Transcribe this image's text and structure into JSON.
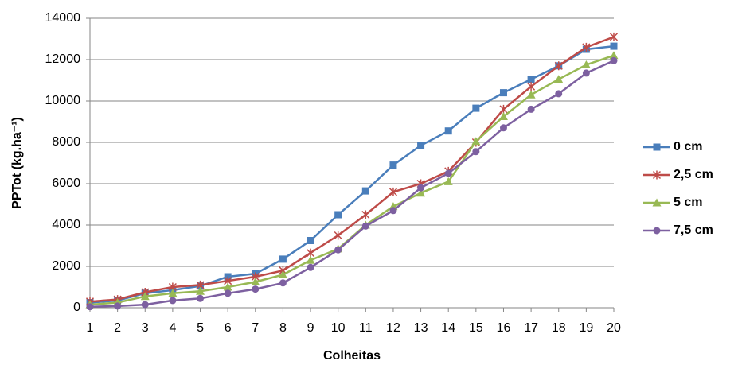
{
  "chart_data": {
    "type": "line",
    "x_label": "Colheitas",
    "y_label": "PPTot (kg.ha⁻¹)",
    "x": [
      1,
      2,
      3,
      4,
      5,
      6,
      7,
      8,
      9,
      10,
      11,
      12,
      13,
      14,
      15,
      16,
      17,
      18,
      19,
      20
    ],
    "xlim": [
      1,
      20
    ],
    "xticks": [
      1,
      2,
      3,
      4,
      5,
      6,
      7,
      8,
      9,
      10,
      11,
      12,
      13,
      14,
      15,
      16,
      17,
      18,
      19,
      20
    ],
    "ylim": [
      0,
      14000
    ],
    "yticks": [
      0,
      2000,
      4000,
      6000,
      8000,
      10000,
      12000,
      14000
    ],
    "grid": true,
    "legend": "right",
    "series": [
      {
        "name": "0 cm",
        "color": "#4a7ebb",
        "marker": "square",
        "values": [
          250,
          350,
          700,
          850,
          1050,
          1500,
          1650,
          2350,
          3250,
          4500,
          5650,
          6900,
          7850,
          8550,
          9650,
          10400,
          11050,
          11700,
          12500,
          12650
        ]
      },
      {
        "name": "2,5 cm",
        "color": "#be4b48",
        "marker": "star",
        "values": [
          300,
          400,
          750,
          1000,
          1100,
          1300,
          1500,
          1800,
          2650,
          3500,
          4500,
          5600,
          6000,
          6600,
          8000,
          9600,
          10700,
          11700,
          12600,
          13100
        ]
      },
      {
        "name": "5 cm",
        "color": "#98b954",
        "marker": "triangle",
        "values": [
          150,
          250,
          550,
          700,
          800,
          1000,
          1250,
          1600,
          2300,
          2850,
          4000,
          4900,
          5550,
          6100,
          8050,
          9250,
          10300,
          11050,
          11750,
          12200
        ]
      },
      {
        "name": "7,5 cm",
        "color": "#7d60a0",
        "marker": "circle",
        "values": [
          50,
          80,
          150,
          350,
          450,
          700,
          900,
          1200,
          1950,
          2800,
          3950,
          4700,
          5800,
          6500,
          7550,
          8700,
          9600,
          10350,
          11350,
          11950
        ]
      }
    ]
  }
}
